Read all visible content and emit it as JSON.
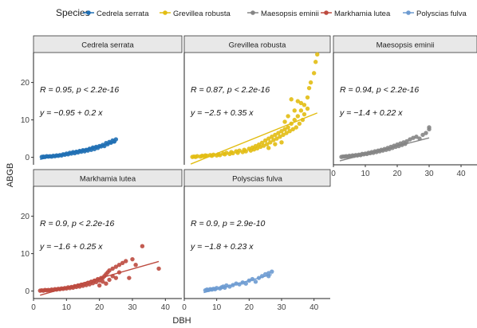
{
  "legend": {
    "title": "Species",
    "position": "top",
    "items": [
      {
        "name": "Cedrela serrata",
        "color": "#1f6fb4"
      },
      {
        "name": "Grevillea robusta",
        "color": "#e2bd12"
      },
      {
        "name": "Maesopsis eminii",
        "color": "#858585"
      },
      {
        "name": "Markhamia lutea",
        "color": "#bd4a3f"
      },
      {
        "name": "Polyscias fulva",
        "color": "#6d9bd1"
      }
    ]
  },
  "chart_data": {
    "type": "scatter",
    "xlabel": "DBH",
    "ylabel": "ABGB",
    "xlim": [
      0,
      45
    ],
    "ylim": [
      -2,
      28
    ],
    "x_ticks": [
      0,
      10,
      20,
      30,
      40
    ],
    "y_ticks": [
      0,
      10,
      20
    ],
    "grid": false,
    "facets": [
      {
        "name": "Cedrela serrata",
        "color": "#1f6fb4",
        "stats": "R = 0.95, p < 2.2e-16",
        "equation": "y = −0.95 + 0.2 x",
        "fit": {
          "intercept": -0.95,
          "slope": 0.2,
          "x_range": [
            2,
            25
          ]
        },
        "points": [
          [
            2.5,
            0.1
          ],
          [
            3,
            0.2
          ],
          [
            3.5,
            0.1
          ],
          [
            4,
            0.3
          ],
          [
            4.5,
            0.2
          ],
          [
            5,
            0.3
          ],
          [
            5.5,
            0.2
          ],
          [
            6,
            0.4
          ],
          [
            6.5,
            0.3
          ],
          [
            7,
            0.5
          ],
          [
            7.5,
            0.4
          ],
          [
            8,
            0.6
          ],
          [
            8.5,
            0.5
          ],
          [
            9,
            0.8
          ],
          [
            9.5,
            0.7
          ],
          [
            10,
            1.0
          ],
          [
            10.5,
            0.8
          ],
          [
            11,
            1.2
          ],
          [
            11.5,
            1.0
          ],
          [
            12,
            1.4
          ],
          [
            12.5,
            1.1
          ],
          [
            13,
            1.5
          ],
          [
            13.5,
            1.3
          ],
          [
            14,
            1.7
          ],
          [
            14.5,
            1.5
          ],
          [
            15,
            1.9
          ],
          [
            15.5,
            1.6
          ],
          [
            16,
            2.0
          ],
          [
            16.5,
            1.8
          ],
          [
            17,
            2.3
          ],
          [
            17.5,
            2.0
          ],
          [
            18,
            2.6
          ],
          [
            18.5,
            2.2
          ],
          [
            19,
            2.8
          ],
          [
            19.5,
            2.5
          ],
          [
            20,
            3.0
          ],
          [
            20.5,
            2.9
          ],
          [
            21,
            3.3
          ],
          [
            21.5,
            3.0
          ],
          [
            22,
            3.8
          ],
          [
            22.5,
            3.5
          ],
          [
            23,
            4.1
          ],
          [
            23.5,
            3.9
          ],
          [
            24,
            4.5
          ],
          [
            24.5,
            4.2
          ],
          [
            25,
            4.8
          ]
        ]
      },
      {
        "name": "Grevillea robusta",
        "color": "#e2bd12",
        "stats": "R = 0.87, p < 2.2e-16",
        "equation": "y = −2.5 + 0.35 x",
        "fit": {
          "intercept": -2.5,
          "slope": 0.35,
          "x_range": [
            2,
            41
          ]
        },
        "points": [
          [
            2.5,
            0.1
          ],
          [
            3,
            0.2
          ],
          [
            3.5,
            0.1
          ],
          [
            4,
            0.3
          ],
          [
            5,
            0.2
          ],
          [
            5.5,
            0.4
          ],
          [
            6,
            0.3
          ],
          [
            6.5,
            0.5
          ],
          [
            7,
            0.4
          ],
          [
            8,
            0.6
          ],
          [
            8.5,
            0.4
          ],
          [
            9,
            0.7
          ],
          [
            10,
            0.5
          ],
          [
            10.5,
            0.8
          ],
          [
            11,
            0.6
          ],
          [
            12,
            1.0
          ],
          [
            12.5,
            0.8
          ],
          [
            13,
            1.2
          ],
          [
            14,
            0.9
          ],
          [
            14.5,
            1.4
          ],
          [
            15,
            1.1
          ],
          [
            16,
            1.6
          ],
          [
            16.5,
            1.2
          ],
          [
            17,
            1.8
          ],
          [
            18,
            1.4
          ],
          [
            18.5,
            2.0
          ],
          [
            19,
            1.6
          ],
          [
            20,
            2.3
          ],
          [
            20.5,
            1.8
          ],
          [
            21,
            2.6
          ],
          [
            21.5,
            2.1
          ],
          [
            22,
            3.0
          ],
          [
            22.5,
            2.4
          ],
          [
            23,
            3.4
          ],
          [
            23.5,
            2.8
          ],
          [
            24,
            3.9
          ],
          [
            24.5,
            3.1
          ],
          [
            25,
            4.5
          ],
          [
            25.5,
            3.5
          ],
          [
            26,
            5.0
          ],
          [
            26.5,
            4.0
          ],
          [
            27,
            5.5
          ],
          [
            27.5,
            4.6
          ],
          [
            28,
            6.0
          ],
          [
            28.5,
            5.0
          ],
          [
            29,
            6.5
          ],
          [
            29.5,
            5.5
          ],
          [
            30,
            7.0
          ],
          [
            30.5,
            6.0
          ],
          [
            31,
            7.5
          ],
          [
            31.5,
            6.5
          ],
          [
            32,
            8.0
          ],
          [
            32.5,
            7.0
          ],
          [
            33,
            9.0
          ],
          [
            33.5,
            7.5
          ],
          [
            34,
            10.0
          ],
          [
            34.5,
            8.0
          ],
          [
            35,
            11.0
          ],
          [
            35.5,
            9.0
          ],
          [
            36,
            12.5
          ],
          [
            36.5,
            10.0
          ],
          [
            37,
            14.0
          ],
          [
            38,
            16.0
          ],
          [
            38.5,
            18.5
          ],
          [
            39,
            20.0
          ],
          [
            40,
            22.5
          ],
          [
            40.5,
            25.5
          ],
          [
            41,
            27.5
          ],
          [
            33,
            15.5
          ],
          [
            35,
            15.0
          ],
          [
            36,
            14.5
          ],
          [
            34,
            12.5
          ],
          [
            32,
            11.0
          ],
          [
            30,
            4.0
          ],
          [
            28,
            3.5
          ],
          [
            26,
            2.5
          ],
          [
            31,
            9.5
          ],
          [
            37,
            11.5
          ],
          [
            38,
            13.0
          ]
        ]
      },
      {
        "name": "Maesopsis eminii",
        "color": "#858585",
        "stats": "R = 0.94, p < 2.2e-16",
        "equation": "y = −1.4 + 0.22 x",
        "fit": {
          "intercept": -1.4,
          "slope": 0.22,
          "x_range": [
            2,
            30
          ]
        },
        "points": [
          [
            2.5,
            0.1
          ],
          [
            3,
            0.2
          ],
          [
            3.5,
            0.2
          ],
          [
            4,
            0.3
          ],
          [
            4.5,
            0.2
          ],
          [
            5,
            0.4
          ],
          [
            5.5,
            0.3
          ],
          [
            6,
            0.5
          ],
          [
            6.5,
            0.4
          ],
          [
            7,
            0.6
          ],
          [
            7.5,
            0.5
          ],
          [
            8,
            0.7
          ],
          [
            8.5,
            0.6
          ],
          [
            9,
            0.9
          ],
          [
            9.5,
            0.8
          ],
          [
            10,
            1.0
          ],
          [
            10.5,
            0.9
          ],
          [
            11,
            1.2
          ],
          [
            11.5,
            1.1
          ],
          [
            12,
            1.4
          ],
          [
            12.5,
            1.2
          ],
          [
            13,
            1.6
          ],
          [
            13.5,
            1.4
          ],
          [
            14,
            1.8
          ],
          [
            14.5,
            1.6
          ],
          [
            15,
            2.0
          ],
          [
            15.5,
            1.8
          ],
          [
            16,
            2.2
          ],
          [
            16.5,
            2.0
          ],
          [
            17,
            2.5
          ],
          [
            17.5,
            2.2
          ],
          [
            18,
            2.8
          ],
          [
            18.5,
            2.5
          ],
          [
            19,
            3.1
          ],
          [
            19.5,
            2.8
          ],
          [
            20,
            3.4
          ],
          [
            20.5,
            3.0
          ],
          [
            21,
            3.7
          ],
          [
            21.5,
            3.3
          ],
          [
            22,
            4.0
          ],
          [
            22.5,
            3.6
          ],
          [
            23,
            4.3
          ],
          [
            24,
            4.8
          ],
          [
            25,
            5.2
          ],
          [
            26,
            5.5
          ],
          [
            27,
            5.0
          ],
          [
            28,
            6.0
          ],
          [
            29,
            6.5
          ],
          [
            30,
            8.0
          ],
          [
            30,
            7.5
          ]
        ]
      },
      {
        "name": "Markhamia lutea",
        "color": "#bd4a3f",
        "stats": "R = 0.9, p < 2.2e-16",
        "equation": "y = −1.6 + 0.25 x",
        "fit": {
          "intercept": -1.6,
          "slope": 0.25,
          "x_range": [
            2,
            38
          ]
        },
        "points": [
          [
            2,
            0.1
          ],
          [
            2.5,
            0.2
          ],
          [
            3,
            0.1
          ],
          [
            3.5,
            0.3
          ],
          [
            4,
            0.2
          ],
          [
            4.5,
            0.3
          ],
          [
            5,
            0.2
          ],
          [
            5.5,
            0.4
          ],
          [
            6,
            0.3
          ],
          [
            6.5,
            0.5
          ],
          [
            7,
            0.4
          ],
          [
            7.5,
            0.6
          ],
          [
            8,
            0.5
          ],
          [
            8.5,
            0.7
          ],
          [
            9,
            0.6
          ],
          [
            9.5,
            0.8
          ],
          [
            10,
            0.7
          ],
          [
            10.5,
            1.0
          ],
          [
            11,
            0.8
          ],
          [
            11.5,
            1.1
          ],
          [
            12,
            0.9
          ],
          [
            12.5,
            1.3
          ],
          [
            13,
            1.1
          ],
          [
            13.5,
            1.5
          ],
          [
            14,
            1.2
          ],
          [
            14.5,
            1.7
          ],
          [
            15,
            1.4
          ],
          [
            15.5,
            1.9
          ],
          [
            16,
            1.6
          ],
          [
            16.5,
            2.2
          ],
          [
            17,
            1.8
          ],
          [
            17.5,
            2.5
          ],
          [
            18,
            2.1
          ],
          [
            18.5,
            2.8
          ],
          [
            19,
            2.4
          ],
          [
            19.5,
            3.2
          ],
          [
            20,
            2.8
          ],
          [
            20.5,
            3.5
          ],
          [
            21,
            3.5
          ],
          [
            21.5,
            4.0
          ],
          [
            22,
            4.5
          ],
          [
            22.5,
            5.0
          ],
          [
            23,
            5.5
          ],
          [
            24,
            6.0
          ],
          [
            25,
            6.5
          ],
          [
            26,
            7.0
          ],
          [
            26,
            5.0
          ],
          [
            27,
            7.5
          ],
          [
            28,
            8.0
          ],
          [
            29,
            3.5
          ],
          [
            30,
            8.5
          ],
          [
            31,
            7.0
          ],
          [
            33,
            12.0
          ],
          [
            38,
            6.0
          ],
          [
            20,
            1.5
          ],
          [
            22,
            2.0
          ],
          [
            23,
            3.0
          ],
          [
            24,
            4.0
          ],
          [
            25,
            3.5
          ],
          [
            21,
            2.5
          ]
        ]
      },
      {
        "name": "Polyscias fulva",
        "color": "#6d9bd1",
        "stats": "R = 0.9, p = 2.9e-10",
        "equation": "y = −1.8 + 0.23 x",
        "fit": {
          "intercept": -1.8,
          "slope": 0.23,
          "x_range": [
            6,
            27
          ]
        },
        "points": [
          [
            6.5,
            0.2
          ],
          [
            7,
            0.4
          ],
          [
            7.5,
            0.3
          ],
          [
            8,
            0.5
          ],
          [
            8.5,
            0.4
          ],
          [
            9,
            0.6
          ],
          [
            9.5,
            0.5
          ],
          [
            10,
            0.8
          ],
          [
            11,
            0.7
          ],
          [
            11.5,
            1.0
          ],
          [
            12,
            1.2
          ],
          [
            12.5,
            0.9
          ],
          [
            13,
            1.5
          ],
          [
            14,
            1.2
          ],
          [
            15,
            1.6
          ],
          [
            16,
            2.0
          ],
          [
            17,
            1.8
          ],
          [
            18,
            2.3
          ],
          [
            19,
            2.0
          ],
          [
            20,
            2.8
          ],
          [
            21,
            3.2
          ],
          [
            22,
            2.5
          ],
          [
            23,
            3.5
          ],
          [
            24,
            4.0
          ],
          [
            25,
            4.5
          ],
          [
            26,
            4.8
          ],
          [
            27,
            5.2
          ],
          [
            26,
            4.0
          ]
        ]
      }
    ]
  }
}
